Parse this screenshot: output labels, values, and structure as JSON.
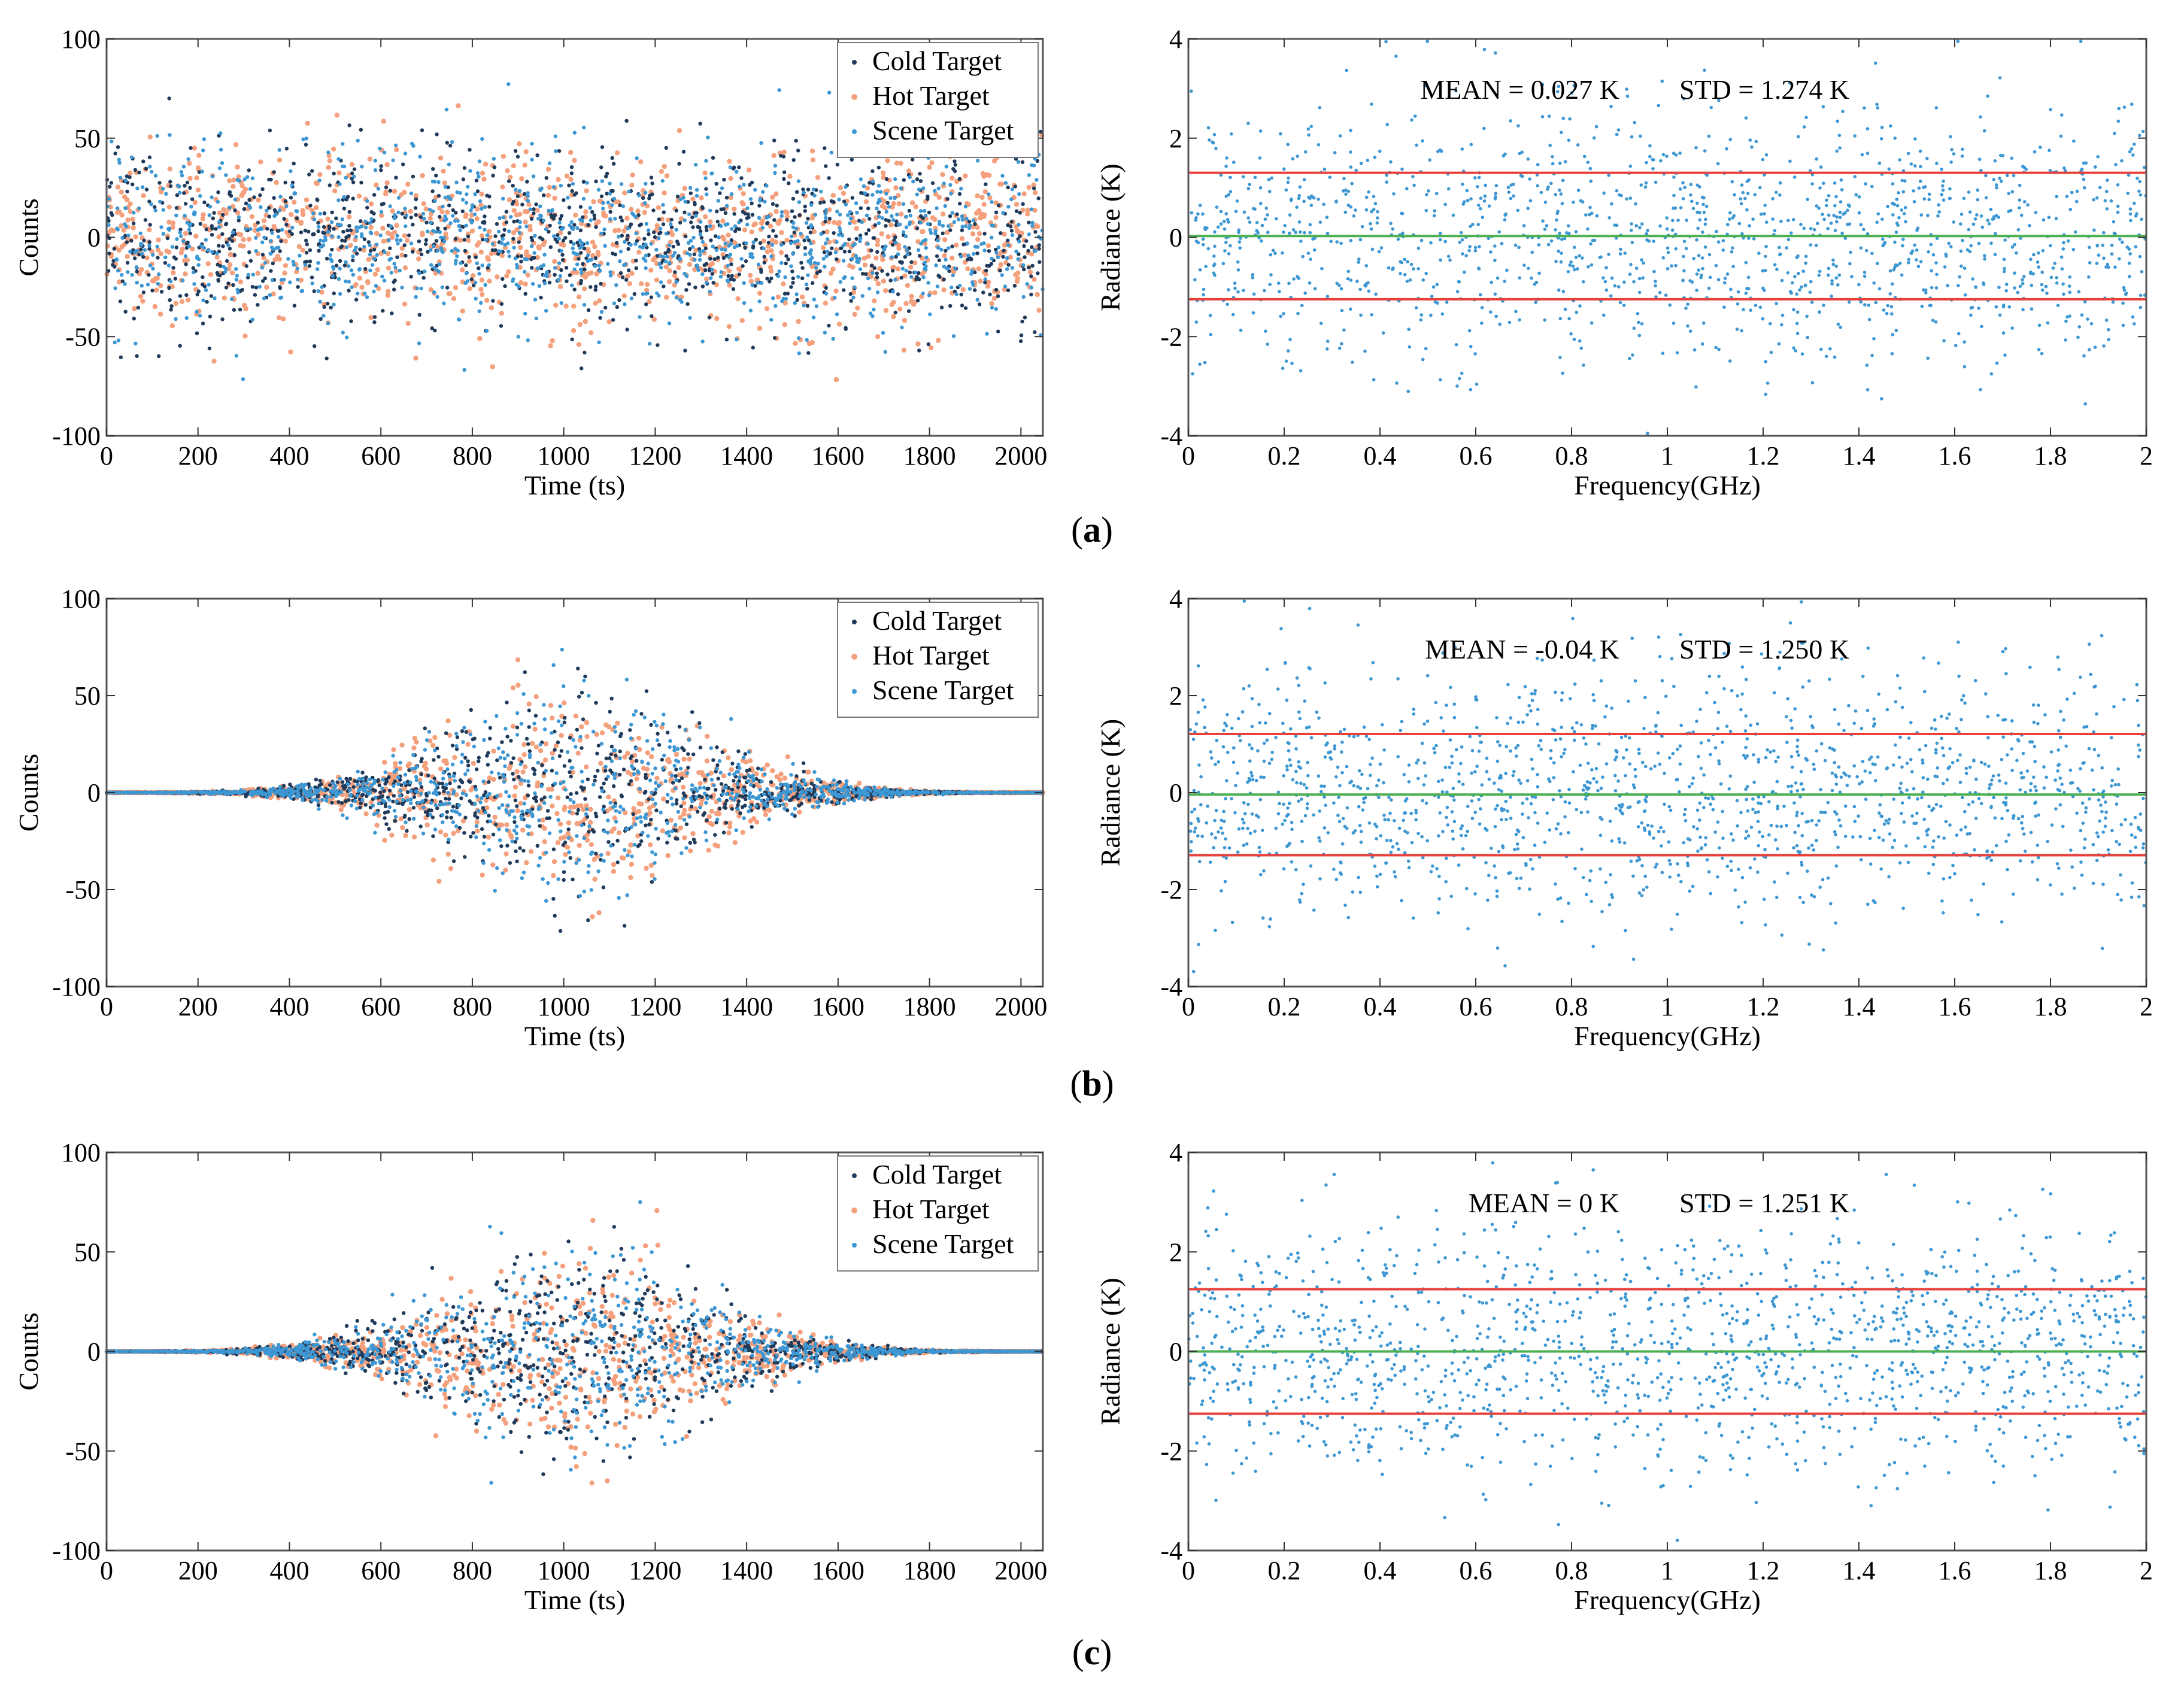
{
  "colors": {
    "cold": "#1f3a5a",
    "hot": "#f4a07c",
    "scene": "#3d97d3",
    "red_line": "#e8413c",
    "green_line": "#4caf50",
    "frame": "#555555"
  },
  "panel_labels": [
    "a",
    "b",
    "c"
  ],
  "chart_data": [
    {
      "id": "a-left",
      "type": "scatter",
      "xlabel": "Time (ts)",
      "ylabel": "Counts",
      "xlim": [
        0,
        2048
      ],
      "ylim": [
        -100,
        100
      ],
      "x_ticks": [
        0,
        200,
        400,
        600,
        800,
        1000,
        1200,
        1400,
        1600,
        1800,
        2000
      ],
      "y_ticks": [
        -100,
        -50,
        0,
        50,
        100
      ],
      "legend": [
        "Cold Target",
        "Hot Target",
        "Scene Target"
      ],
      "legend_position": "top-right",
      "envelope": "uniform",
      "amplitude": 22,
      "points_per_series": 1100
    },
    {
      "id": "a-right",
      "type": "scatter",
      "xlabel": "Frequency(GHz)",
      "ylabel": "Radiance (K)",
      "xlim": [
        0,
        2
      ],
      "ylim": [
        -4,
        4
      ],
      "x_ticks": [
        0,
        0.2,
        0.4,
        0.6,
        0.8,
        1,
        1.2,
        1.4,
        1.6,
        1.8,
        2
      ],
      "y_ticks": [
        -4,
        -2,
        0,
        2,
        4
      ],
      "mean_text": "MEAN = 0.027 K",
      "std_text": "STD = 1.274 K",
      "mean": 0.027,
      "std": 1.274,
      "points": 1500
    },
    {
      "id": "b-left",
      "type": "scatter",
      "xlabel": "Time (ts)",
      "ylabel": "Counts",
      "xlim": [
        0,
        2048
      ],
      "ylim": [
        -100,
        100
      ],
      "x_ticks": [
        0,
        200,
        400,
        600,
        800,
        1000,
        1200,
        1400,
        1600,
        1800,
        2000
      ],
      "y_ticks": [
        -100,
        -50,
        0,
        50,
        100
      ],
      "legend": [
        "Cold Target",
        "Hot Target",
        "Scene Target"
      ],
      "legend_position": "top-right",
      "envelope": "peaked",
      "amplitude": 26,
      "points_per_series": 1100
    },
    {
      "id": "b-right",
      "type": "scatter",
      "xlabel": "Frequency(GHz)",
      "ylabel": "Radiance (K)",
      "xlim": [
        0,
        2
      ],
      "ylim": [
        -4,
        4
      ],
      "x_ticks": [
        0,
        0.2,
        0.4,
        0.6,
        0.8,
        1,
        1.2,
        1.4,
        1.6,
        1.8,
        2
      ],
      "y_ticks": [
        -4,
        -2,
        0,
        2,
        4
      ],
      "mean_text": "MEAN = -0.04 K",
      "std_text": "STD = 1.250 K",
      "mean": -0.04,
      "std": 1.25,
      "points": 1500
    },
    {
      "id": "c-left",
      "type": "scatter",
      "xlabel": "Time (ts)",
      "ylabel": "Counts",
      "xlim": [
        0,
        2048
      ],
      "ylim": [
        -100,
        100
      ],
      "x_ticks": [
        0,
        200,
        400,
        600,
        800,
        1000,
        1200,
        1400,
        1600,
        1800,
        2000
      ],
      "y_ticks": [
        -100,
        -50,
        0,
        50,
        100
      ],
      "legend": [
        "Cold Target",
        "Hot Target",
        "Scene Target"
      ],
      "legend_position": "top-right",
      "envelope": "peaked",
      "amplitude": 26,
      "points_per_series": 1100
    },
    {
      "id": "c-right",
      "type": "scatter",
      "xlabel": "Frequency(GHz)",
      "ylabel": "Radiance (K)",
      "xlim": [
        0,
        2
      ],
      "ylim": [
        -4,
        4
      ],
      "x_ticks": [
        0,
        0.2,
        0.4,
        0.6,
        0.8,
        1,
        1.2,
        1.4,
        1.6,
        1.8,
        2
      ],
      "y_ticks": [
        -4,
        -2,
        0,
        2,
        4
      ],
      "mean_text": "MEAN = 0 K",
      "std_text": "STD = 1.251 K",
      "mean": 0,
      "std": 1.251,
      "points": 1500
    }
  ]
}
